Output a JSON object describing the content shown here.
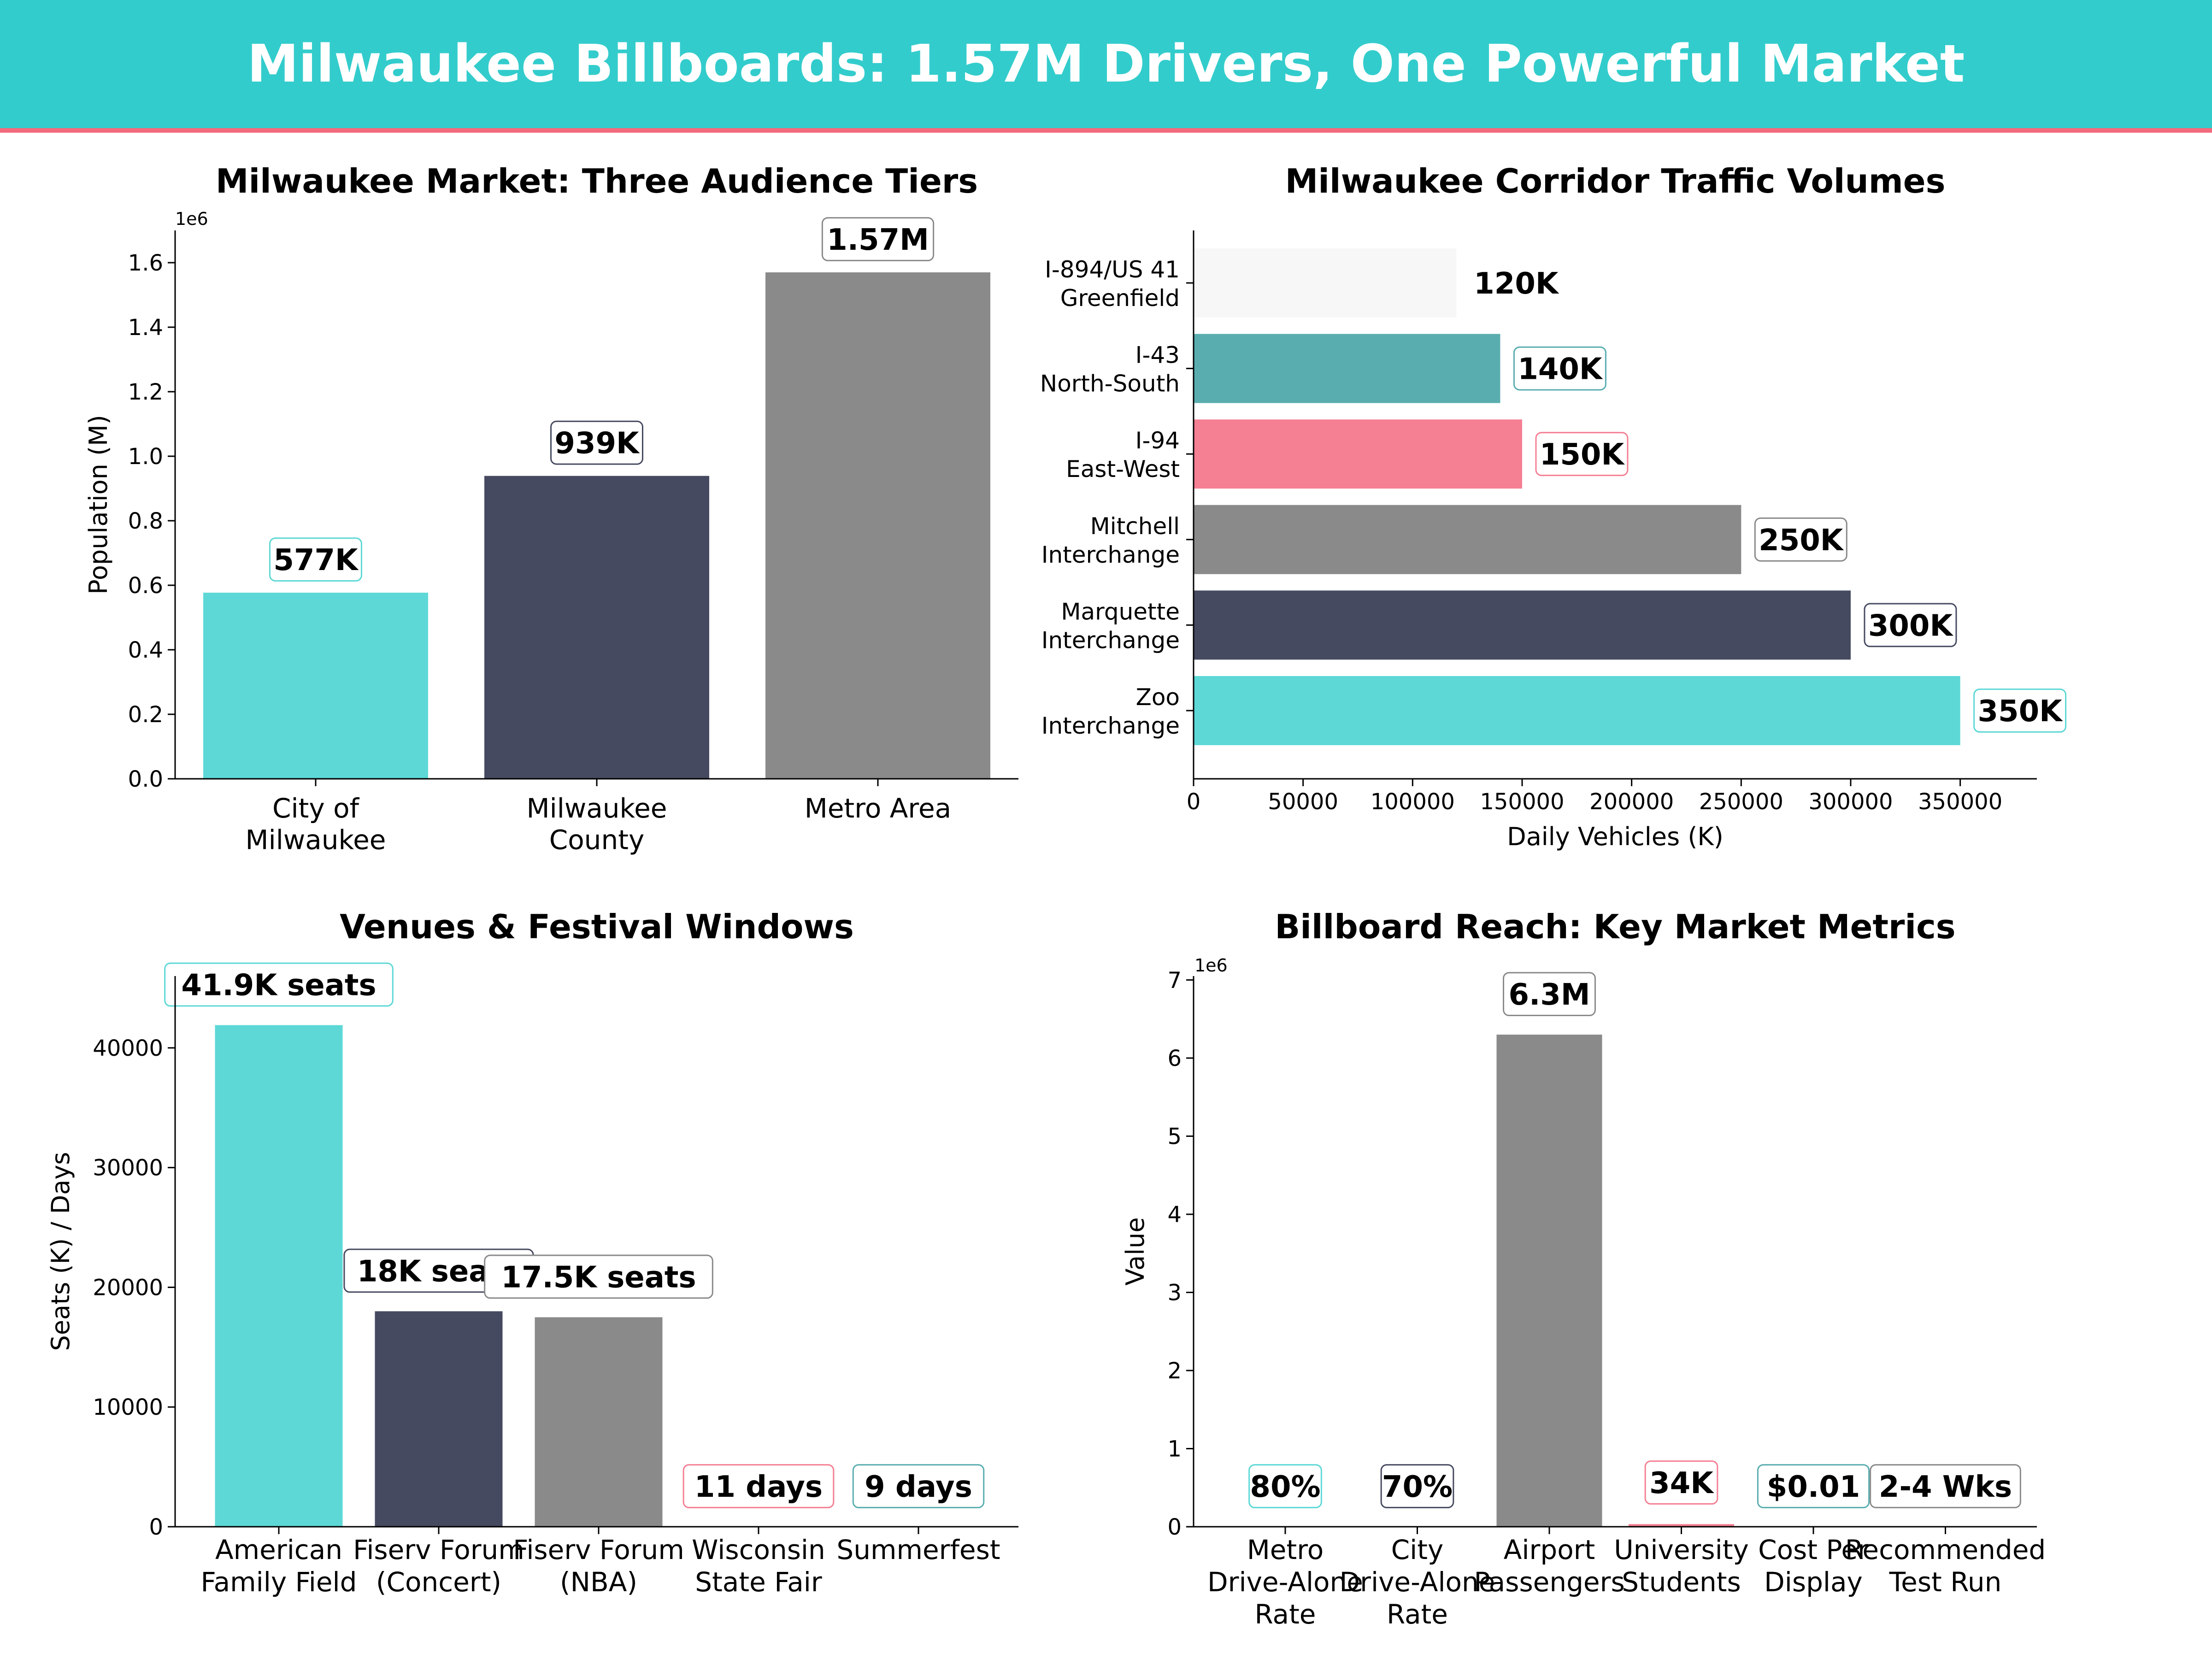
{
  "banner": {
    "title": "Milwaukee Billboards: 1.57M Drivers, One Powerful Market",
    "bg_color": "#33CCCC",
    "line_color": "#F26A7E"
  },
  "colors": {
    "teal": "#5DD8D6",
    "navy": "#464A60",
    "gray": "#8A8A8A",
    "pink": "#F57F93",
    "lightgray": "#F7F7F7",
    "darkteal": "#5AADAF"
  },
  "chart_data": [
    {
      "type": "bar",
      "title": "Milwaukee Market: Three Audience Tiers",
      "ylabel": "Population (M)",
      "xlabel": "",
      "scale_label": "1e6",
      "categories": [
        "City of\nMilwaukee",
        "Milwaukee\nCounty",
        "Metro Area"
      ],
      "values": [
        577000,
        939000,
        1570000
      ],
      "labels": [
        "577K",
        "939K",
        "1.57M"
      ],
      "ylim": [
        0,
        1700000
      ],
      "yticks": [
        0,
        200000,
        400000,
        600000,
        800000,
        1000000,
        1200000,
        1400000,
        1600000
      ],
      "ytick_labels": [
        "0.0",
        "0.2",
        "0.4",
        "0.6",
        "0.8",
        "1.0",
        "1.2",
        "1.4",
        "1.6"
      ],
      "grid": false
    },
    {
      "type": "bar",
      "orientation": "horizontal",
      "title": "Milwaukee Corridor Traffic Volumes",
      "xlabel": "Daily Vehicles (K)",
      "ylabel": "",
      "categories": [
        "I-894/US 41\nGreenfield",
        "I-43\nNorth-South",
        "I-94\nEast-West",
        "Mitchell\nInterchange",
        "Marquette\nInterchange",
        "Zoo\nInterchange"
      ],
      "values": [
        120000,
        140000,
        150000,
        250000,
        300000,
        350000
      ],
      "labels": [
        "120K",
        "140K",
        "150K",
        "250K",
        "300K",
        "350K"
      ],
      "xlim": [
        0,
        385000
      ],
      "xticks": [
        0,
        50000,
        100000,
        150000,
        200000,
        250000,
        300000,
        350000
      ],
      "xtick_labels": [
        "0",
        "50000",
        "100000",
        "150000",
        "200000",
        "250000",
        "300000",
        "350000"
      ],
      "grid": false
    },
    {
      "type": "bar",
      "title": "Venues & Festival Windows",
      "ylabel": "Seats (K) / Days",
      "xlabel": "",
      "categories": [
        "American\nFamily Field",
        "Fiserv Forum\n(Concert)",
        "Fiserv Forum\n(NBA)",
        "Wisconsin\nState Fair",
        "Summerfest"
      ],
      "values": [
        41900,
        18000,
        17500,
        11,
        9
      ],
      "labels": [
        "41.9K seats",
        "18K seats",
        "17.5K seats",
        "11 days",
        "9 days"
      ],
      "ylim": [
        0,
        46000
      ],
      "yticks": [
        0,
        10000,
        20000,
        30000,
        40000
      ],
      "ytick_labels": [
        "0",
        "10000",
        "20000",
        "30000",
        "40000"
      ],
      "grid": false
    },
    {
      "type": "bar",
      "title": "Billboard Reach: Key Market Metrics",
      "ylabel": "Value",
      "xlabel": "",
      "scale_label": "1e6",
      "categories": [
        "Metro\nDrive-Alone\nRate",
        "City\nDrive-Alone\nRate",
        "Airport\nPassengers",
        "University\nStudents",
        "Cost Per\nDisplay",
        "Recommended\nTest Run"
      ],
      "values": [
        80,
        70,
        6300000,
        34000,
        0.01,
        3
      ],
      "labels": [
        "80%",
        "70%",
        "6.3M",
        "34K",
        "$0.01",
        "2-4 Wks"
      ],
      "ylim": [
        0,
        7050000
      ],
      "yticks": [
        0,
        1000000,
        2000000,
        3000000,
        4000000,
        5000000,
        6000000,
        7000000
      ],
      "ytick_labels": [
        "0",
        "1",
        "2",
        "3",
        "4",
        "5",
        "6",
        "7"
      ],
      "grid": false
    }
  ]
}
